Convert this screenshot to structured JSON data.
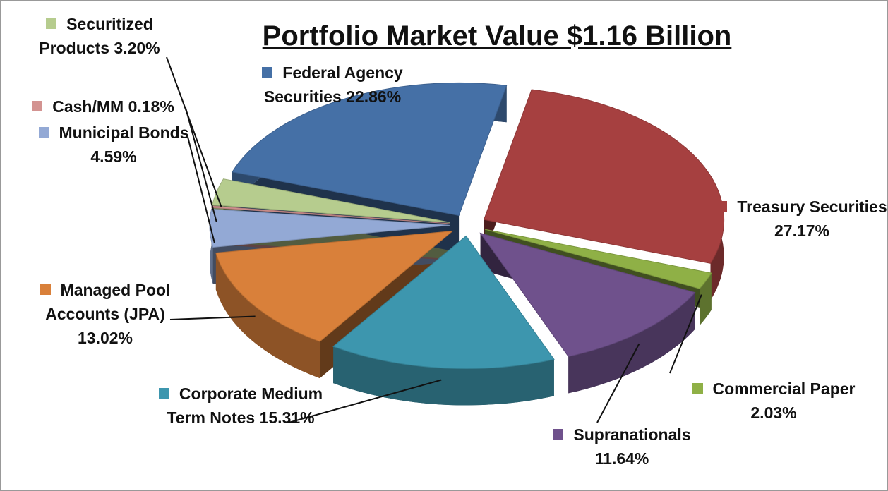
{
  "chart_data": {
    "type": "pie",
    "title": "Portfolio Market Value $1.16 Billion",
    "categories": [
      "Treasury Securities",
      "Commercial Paper",
      "Supranationals",
      "Corporate Medium Term Notes",
      "Managed Pool Accounts (JPA)",
      "Municipal Bonds",
      "Cash/MM",
      "Securitized Products",
      "Federal Agency Securities"
    ],
    "values": [
      27.17,
      2.03,
      11.64,
      15.31,
      13.02,
      4.59,
      0.18,
      3.2,
      22.86
    ],
    "value_labels": [
      "27.17%",
      "2.03%",
      "11.64%",
      "15.31%",
      "13.02%",
      "4.59%",
      "0.18%",
      "3.20%",
      "22.86%"
    ],
    "colors": [
      "#a64040",
      "#8fb046",
      "#6f518c",
      "#3d96ae",
      "#d9803a",
      "#93a9d5",
      "#d39391",
      "#b6cc8e",
      "#4570a6"
    ]
  }
}
